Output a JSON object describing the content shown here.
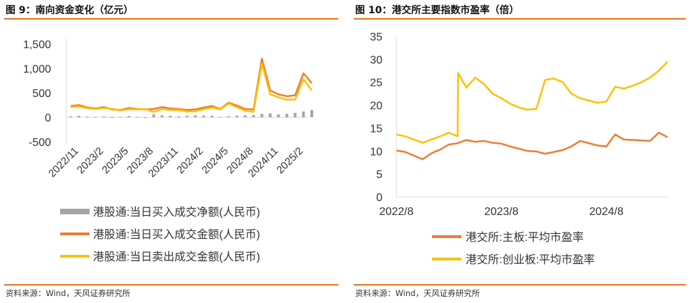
{
  "left": {
    "title": "图 9：南向资金变化（亿元）",
    "source": "资料来源：Wind，天风证券研究所"
  },
  "right": {
    "title": "图 10：港交所主要指数市盈率（倍）",
    "source": "资料来源：Wind，天风证券研究所"
  },
  "chart_data": [
    {
      "type": "line",
      "title": "南向资金变化（亿元）",
      "ylim": [
        -500,
        1500
      ],
      "yticks": [
        -500,
        0,
        500,
        1000,
        1500
      ],
      "ytick_labels": [
        "-500",
        "0",
        "500",
        "1,000",
        "1,500"
      ],
      "xtick_labels": [
        "2022/11",
        "2023/2",
        "2023/5",
        "2023/8",
        "2023/11",
        "2024/2",
        "2024/5",
        "2024/8",
        "2024/11",
        "2025/2"
      ],
      "xrange": [
        "2022/10",
        "2025/3"
      ],
      "grid": false,
      "legend_position": "bottom",
      "colors": {
        "net": "#a6a6a6",
        "buy": "#ed7d31",
        "sell": "#ffc000"
      },
      "series": [
        {
          "name": "港股通:当日买入成交净额(人民币)",
          "kind": "bar",
          "x": [
            "2022/10",
            "2022/11",
            "2022/12",
            "2023/1",
            "2023/2",
            "2023/3",
            "2023/4",
            "2023/5",
            "2023/6",
            "2023/7",
            "2023/8",
            "2023/9",
            "2023/10",
            "2023/11",
            "2023/12",
            "2024/1",
            "2024/2",
            "2024/3",
            "2024/4",
            "2024/5",
            "2024/6",
            "2024/7",
            "2024/8",
            "2024/9",
            "2024/10",
            "2024/11",
            "2024/12",
            "2025/1",
            "2025/2",
            "2025/3"
          ],
          "values": [
            20,
            30,
            15,
            10,
            20,
            -15,
            10,
            25,
            10,
            -10,
            60,
            40,
            30,
            20,
            30,
            40,
            35,
            30,
            10,
            20,
            35,
            40,
            45,
            70,
            80,
            60,
            70,
            90,
            120,
            150
          ]
        },
        {
          "name": "港股通:当日买入成交金额(人民币)",
          "kind": "line",
          "x": [
            "2022/10",
            "2022/11",
            "2022/12",
            "2023/1",
            "2023/2",
            "2023/3",
            "2023/4",
            "2023/5",
            "2023/6",
            "2023/7",
            "2023/8",
            "2023/9",
            "2023/10",
            "2023/11",
            "2023/12",
            "2024/1",
            "2024/2",
            "2024/3",
            "2024/4",
            "2024/5",
            "2024/6",
            "2024/7",
            "2024/8",
            "2024/9",
            "2024/10",
            "2024/11",
            "2024/12",
            "2025/1",
            "2025/2",
            "2025/3"
          ],
          "values": [
            230,
            250,
            200,
            180,
            210,
            160,
            150,
            190,
            170,
            160,
            170,
            210,
            180,
            170,
            150,
            160,
            200,
            230,
            170,
            300,
            240,
            170,
            160,
            1200,
            550,
            470,
            430,
            450,
            900,
            700
          ]
        },
        {
          "name": "港股通:当日卖出成交金额(人民币)",
          "kind": "line",
          "x": [
            "2022/10",
            "2022/11",
            "2022/12",
            "2023/1",
            "2023/2",
            "2023/3",
            "2023/4",
            "2023/5",
            "2023/6",
            "2023/7",
            "2023/8",
            "2023/9",
            "2023/10",
            "2023/11",
            "2023/12",
            "2024/1",
            "2024/2",
            "2024/3",
            "2024/4",
            "2024/5",
            "2024/6",
            "2024/7",
            "2024/8",
            "2024/9",
            "2024/10",
            "2024/11",
            "2024/12",
            "2025/1",
            "2025/2",
            "2025/3"
          ],
          "values": [
            210,
            220,
            185,
            170,
            190,
            175,
            140,
            165,
            160,
            170,
            110,
            170,
            150,
            150,
            120,
            120,
            165,
            200,
            160,
            280,
            205,
            130,
            115,
            1100,
            470,
            410,
            360,
            360,
            780,
            550
          ]
        }
      ]
    },
    {
      "type": "line",
      "title": "港交所主要指数市盈率（倍）",
      "ylim": [
        0,
        35
      ],
      "yticks": [
        0,
        5,
        10,
        15,
        20,
        25,
        30,
        35
      ],
      "xtick_labels": [
        "2022/8",
        "2023/8",
        "2024/8"
      ],
      "xrange": [
        "2022/8",
        "2025/3"
      ],
      "grid": false,
      "legend_position": "bottom",
      "colors": {
        "main": "#ed7d31",
        "gem": "#ffc000"
      },
      "series": [
        {
          "name": "港交所:主板:平均市盈率",
          "x": [
            "2022/8",
            "2022/9",
            "2022/10",
            "2022/11",
            "2022/12",
            "2023/1",
            "2023/2",
            "2023/3",
            "2023/4",
            "2023/5",
            "2023/6",
            "2023/7",
            "2023/8",
            "2023/9",
            "2023/10",
            "2023/11",
            "2023/12",
            "2024/1",
            "2024/2",
            "2024/3",
            "2024/4",
            "2024/5",
            "2024/6",
            "2024/7",
            "2024/8",
            "2024/9",
            "2024/10",
            "2024/11",
            "2024/12",
            "2025/1",
            "2025/2",
            "2025/3"
          ],
          "values": [
            10.1,
            9.8,
            9.0,
            8.2,
            9.5,
            10.3,
            11.4,
            11.7,
            12.4,
            12.0,
            12.2,
            11.8,
            11.6,
            11.0,
            10.5,
            10.0,
            9.9,
            9.4,
            9.8,
            10.2,
            11.0,
            12.2,
            11.7,
            11.2,
            11.0,
            13.6,
            12.5,
            12.4,
            12.3,
            12.2,
            14.0,
            13.0
          ]
        },
        {
          "name": "港交所:创业板:平均市盈率",
          "x": [
            "2022/8",
            "2022/9",
            "2022/10",
            "2022/11",
            "2022/12",
            "2023/1",
            "2023/2",
            "2023/3",
            "2023/3",
            "2023/4",
            "2023/5",
            "2023/6",
            "2023/7",
            "2023/8",
            "2023/9",
            "2023/10",
            "2023/11",
            "2023/12",
            "2024/1",
            "2024/2",
            "2024/3",
            "2024/4",
            "2024/5",
            "2024/6",
            "2024/7",
            "2024/8",
            "2024/9",
            "2024/10",
            "2024/11",
            "2024/12",
            "2025/1",
            "2025/2",
            "2025/3"
          ],
          "values": [
            13.6,
            13.2,
            12.5,
            11.8,
            12.5,
            13.2,
            14.0,
            13.2,
            27.0,
            23.8,
            26.0,
            24.6,
            22.5,
            21.5,
            20.3,
            19.5,
            19.0,
            19.2,
            25.5,
            25.8,
            25.0,
            22.5,
            21.5,
            21.0,
            20.5,
            20.8,
            24.0,
            23.6,
            24.2,
            25.0,
            26.0,
            27.5,
            29.5
          ]
        }
      ]
    }
  ]
}
